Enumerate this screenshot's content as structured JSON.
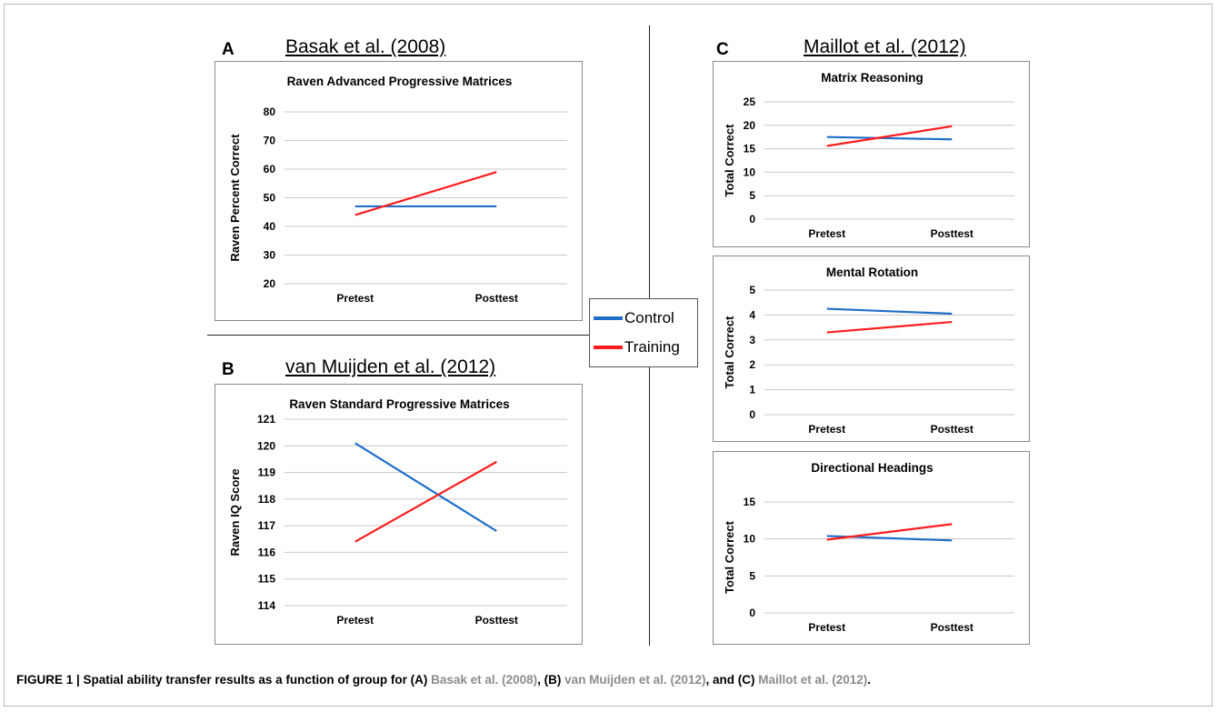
{
  "panels": {
    "A": {
      "letter": "A",
      "study": "Basak et al. (2008)"
    },
    "B": {
      "letter": "B",
      "study": "van Muijden et al. (2012)"
    },
    "C": {
      "letter": "C",
      "study": "Maillot et al. (2012)"
    }
  },
  "legend": {
    "items": [
      {
        "label": "Control",
        "color": "#1f6fc9"
      },
      {
        "label": "Training",
        "color": "#ff1c1c"
      }
    ]
  },
  "caption": {
    "prefix": "FIGURE 1 | Spatial ability transfer results as a function of group for (A) ",
    "ref1": "Basak et al. (2008)",
    "mid1": ", (B) ",
    "ref2": "van Muijden et al. (2012)",
    "mid2": ", and (C) ",
    "ref3": "Maillot et al. (2012)",
    "suffix": "."
  },
  "chart_data": [
    {
      "id": "A",
      "type": "line",
      "title": "Raven Advanced Progressive Matrices",
      "ylabel": "Raven Percent Correct",
      "categories": [
        "Pretest",
        "Posttest"
      ],
      "ylim": [
        20,
        80
      ],
      "yticks": [
        20,
        30,
        40,
        50,
        60,
        70,
        80
      ],
      "grid": true,
      "series": [
        {
          "name": "Control",
          "color": "#1f6fc9",
          "values": [
            47,
            47
          ]
        },
        {
          "name": "Training",
          "color": "#ff1c1c",
          "values": [
            44,
            59
          ]
        }
      ]
    },
    {
      "id": "B",
      "type": "line",
      "title": "Raven Standard Progressive Matrices",
      "ylabel": "Raven IQ Score",
      "categories": [
        "Pretest",
        "Posttest"
      ],
      "ylim": [
        114,
        121
      ],
      "yticks": [
        114,
        115,
        116,
        117,
        118,
        119,
        120,
        121
      ],
      "grid": true,
      "series": [
        {
          "name": "Control",
          "color": "#1f6fc9",
          "values": [
            120.1,
            116.8
          ]
        },
        {
          "name": "Training",
          "color": "#ff1c1c",
          "values": [
            116.4,
            119.4
          ]
        }
      ]
    },
    {
      "id": "C1",
      "type": "line",
      "title": "Matrix Reasoning",
      "ylabel": "Total Correct",
      "categories": [
        "Pretest",
        "Posttest"
      ],
      "ylim": [
        0,
        25
      ],
      "yticks": [
        0,
        5,
        10,
        15,
        20,
        25
      ],
      "grid": true,
      "series": [
        {
          "name": "Control",
          "color": "#1f6fc9",
          "values": [
            17.5,
            17
          ]
        },
        {
          "name": "Training",
          "color": "#ff1c1c",
          "values": [
            15.6,
            19.8
          ]
        }
      ]
    },
    {
      "id": "C2",
      "type": "line",
      "title": "Mental Rotation",
      "ylabel": "Total Correct",
      "categories": [
        "Pretest",
        "Posttest"
      ],
      "ylim": [
        0,
        5
      ],
      "yticks": [
        0,
        1,
        2,
        3,
        4,
        5
      ],
      "grid": true,
      "series": [
        {
          "name": "Control",
          "color": "#1f6fc9",
          "values": [
            4.25,
            4.05
          ]
        },
        {
          "name": "Training",
          "color": "#ff1c1c",
          "values": [
            3.3,
            3.72
          ]
        }
      ]
    },
    {
      "id": "C3",
      "type": "line",
      "title": "Directional Headings",
      "ylabel": "Total Correct",
      "categories": [
        "Pretest",
        "Posttest"
      ],
      "ylim": [
        0,
        15
      ],
      "yticks": [
        0,
        5,
        10,
        15
      ],
      "grid": true,
      "series": [
        {
          "name": "Control",
          "color": "#1f6fc9",
          "values": [
            10.4,
            9.8
          ]
        },
        {
          "name": "Training",
          "color": "#ff1c1c",
          "values": [
            9.9,
            12
          ]
        }
      ]
    }
  ]
}
